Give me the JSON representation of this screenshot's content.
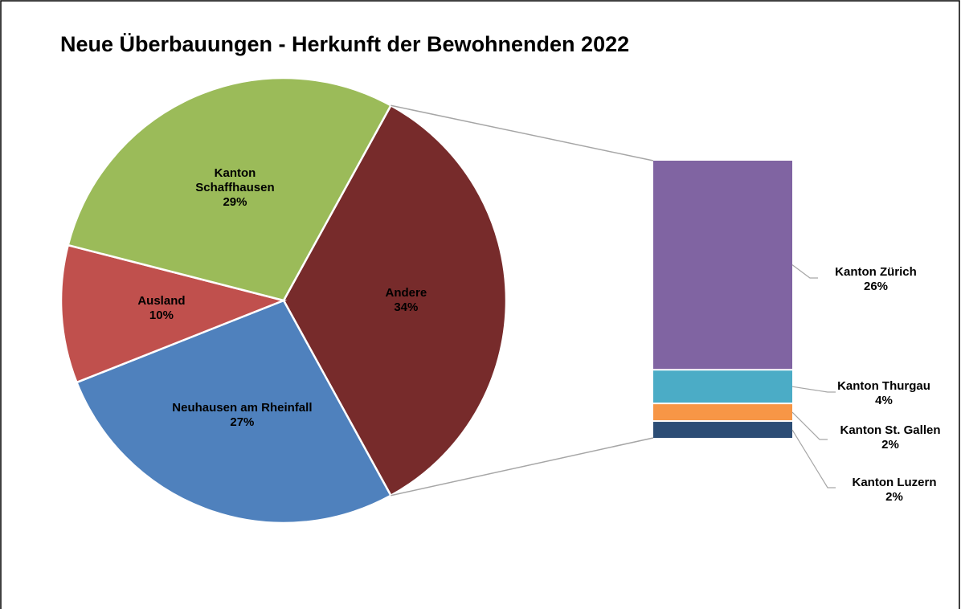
{
  "chart_data": {
    "type": "bar-of-pie",
    "title": "Neue Überbauungen - Herkunft der Bewohnenden 2022",
    "pie": {
      "categories": [
        "Andere",
        "Neuhausen am Rheinfall",
        "Ausland",
        "Kanton Schaffhausen"
      ],
      "values": [
        34,
        27,
        10,
        29
      ],
      "value_labels": [
        "34%",
        "27%",
        "10%",
        "29%"
      ],
      "colors": [
        "#772b2b",
        "#4f81bd",
        "#c0504d",
        "#9bbb59"
      ]
    },
    "bar": {
      "categories": [
        "Kanton Zürich",
        "Kanton Thurgau",
        "Kanton St. Gallen",
        "Kanton Luzern"
      ],
      "values": [
        26,
        4,
        2,
        2
      ],
      "value_labels": [
        "26%",
        "4%",
        "2%",
        "2%"
      ],
      "colors": [
        "#8064a2",
        "#4bacc6",
        "#f79646",
        "#2c4d75"
      ]
    }
  }
}
